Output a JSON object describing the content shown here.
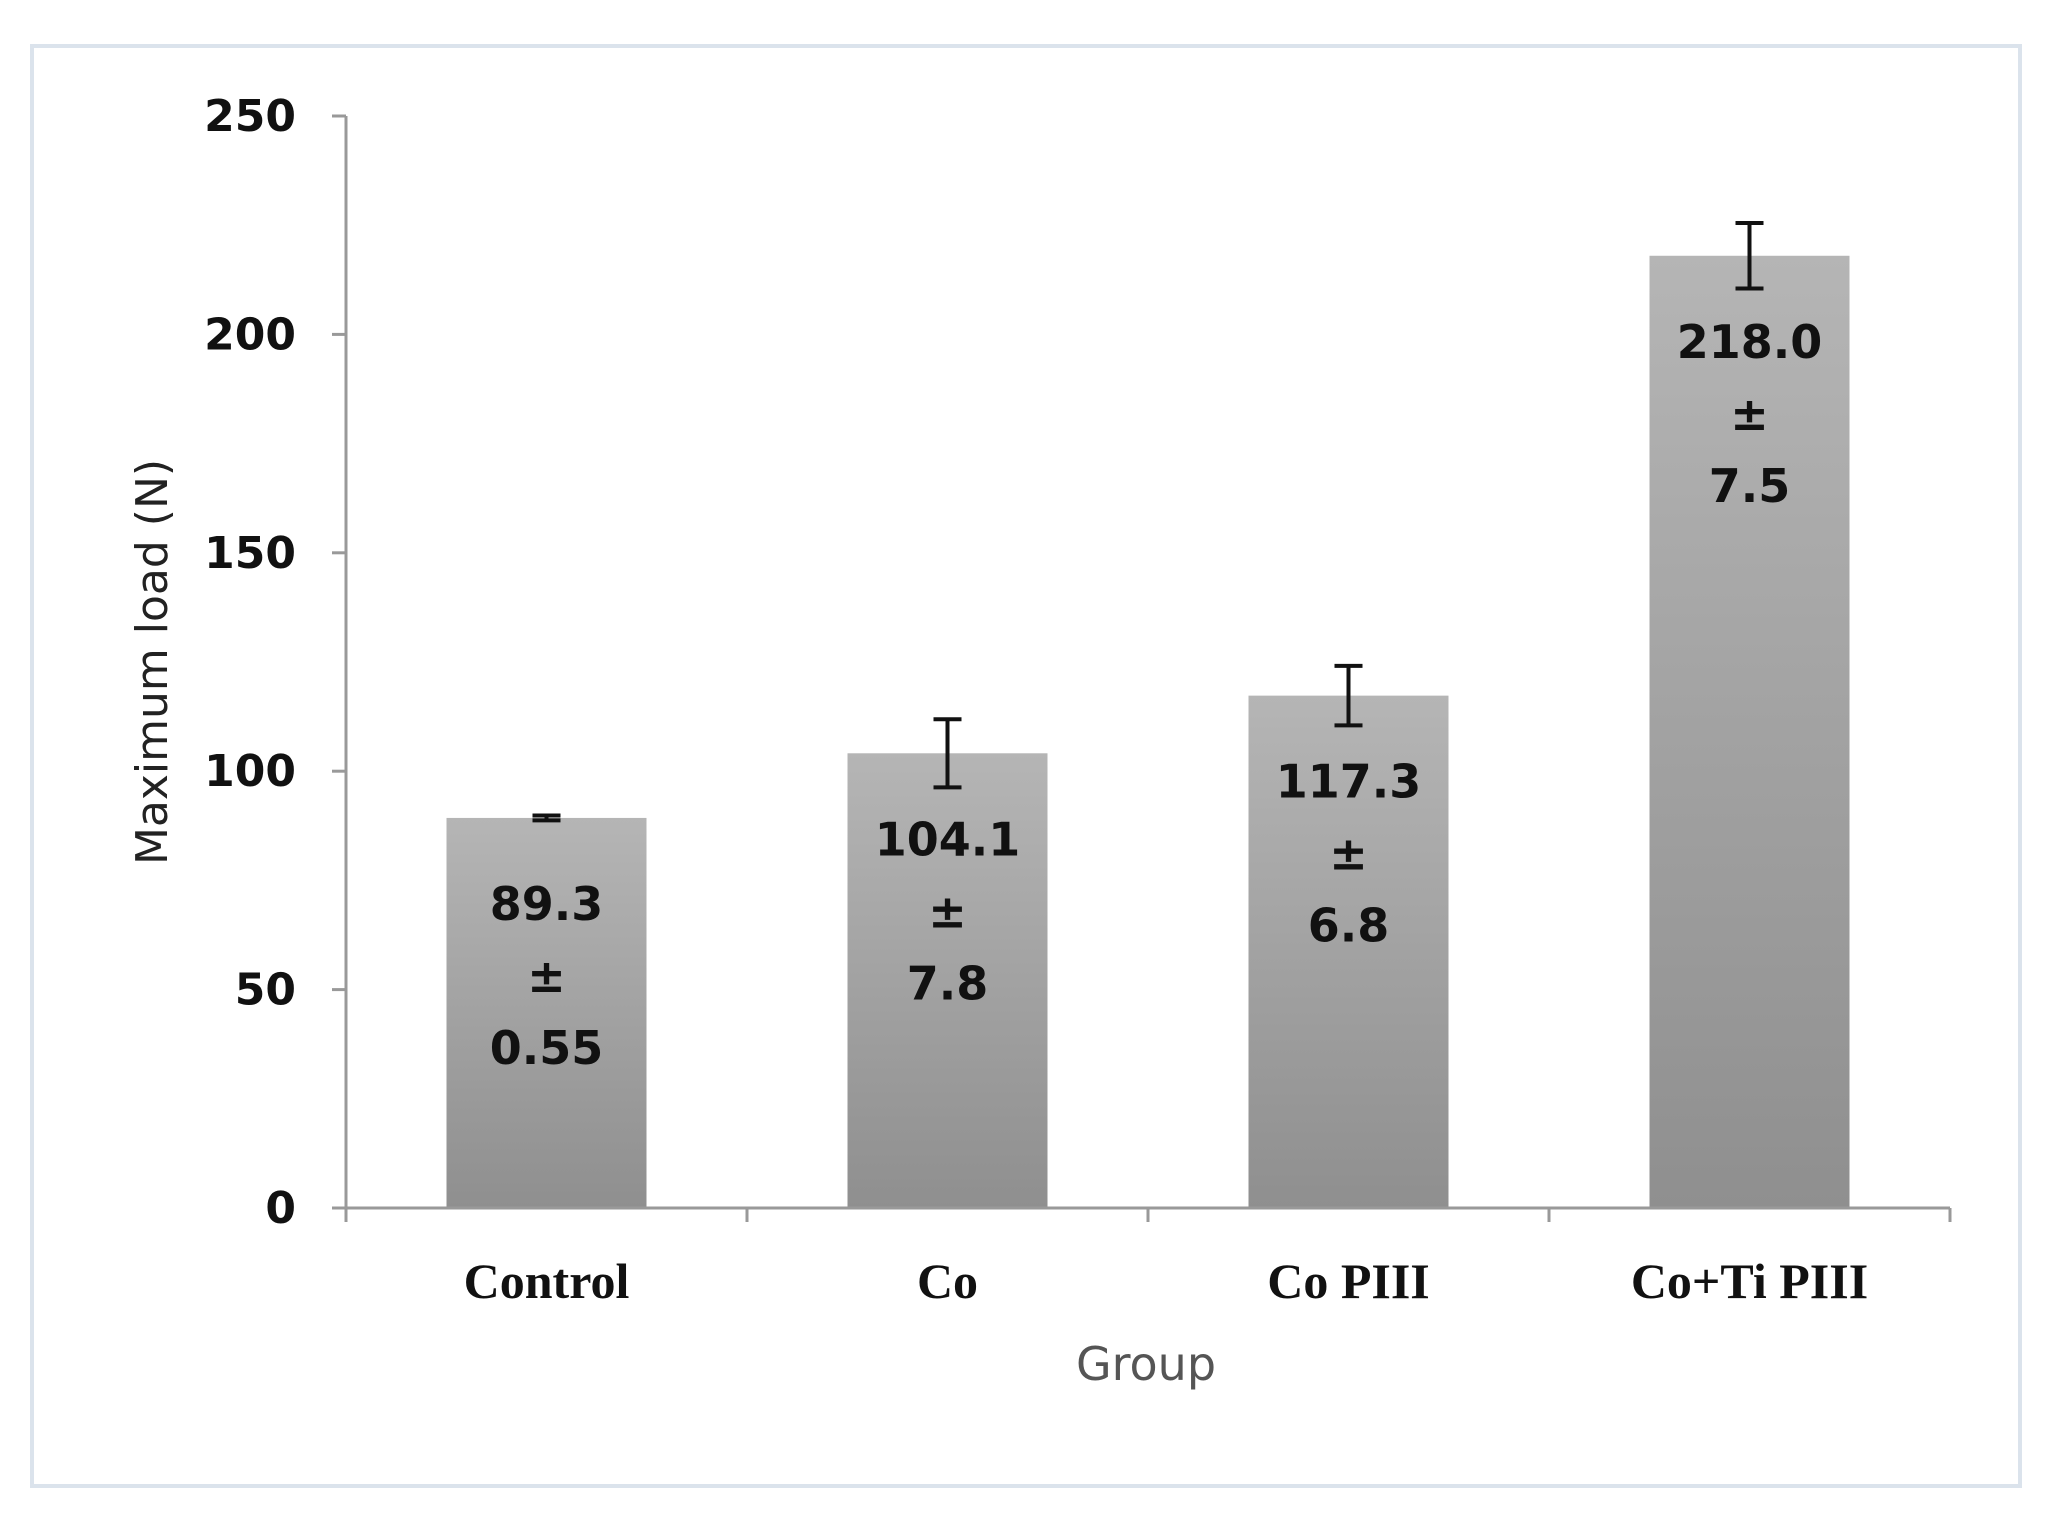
{
  "chart_data": {
    "type": "bar",
    "categories": [
      "Control",
      "Co",
      "Co PIII",
      "Co+Ti PIII"
    ],
    "values": [
      89.3,
      104.1,
      117.3,
      218.0
    ],
    "errors": [
      0.55,
      7.8,
      6.8,
      7.5
    ],
    "data_labels": [
      [
        "89.3",
        "±",
        "0.55"
      ],
      [
        "104.1",
        "±",
        "7.8"
      ],
      [
        "117.3",
        "±",
        "6.8"
      ],
      [
        "218.0",
        "±",
        "7.5"
      ]
    ],
    "xlabel": "Group",
    "ylabel": "Maximum load (N)",
    "ylim": [
      0,
      250
    ],
    "yticks": [
      0,
      50,
      100,
      150,
      200,
      250
    ],
    "grid": false,
    "legend": "none",
    "bar_color_top": "#b5b5b5",
    "bar_color_bottom": "#8f8f8f",
    "axis_color": "#999999",
    "error_bar_color": "#111111"
  }
}
